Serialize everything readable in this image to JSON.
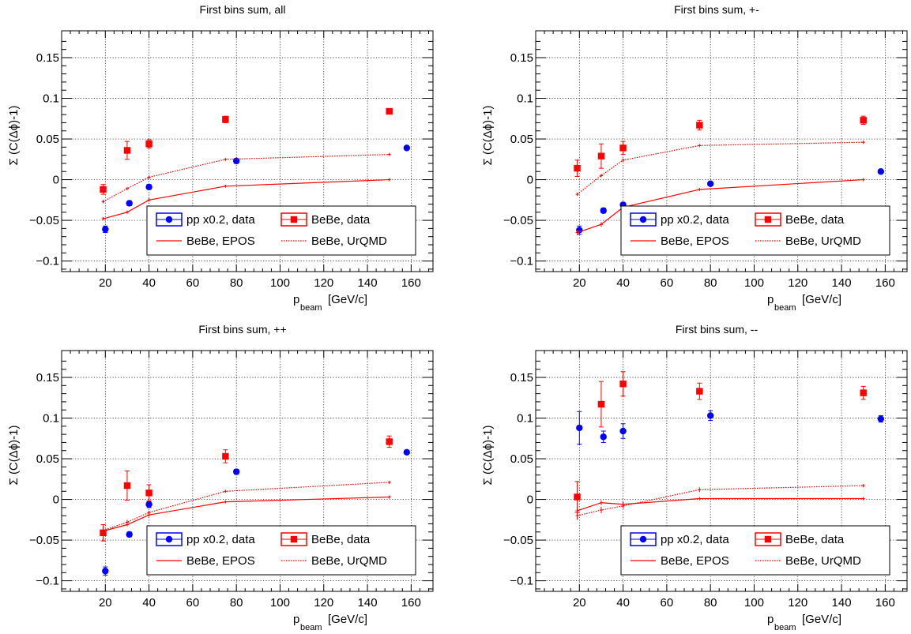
{
  "chart_data": [
    {
      "type": "scatter",
      "title": "First bins sum, all",
      "xlabel_main": "p",
      "xlabel_sub": "beam",
      "xlabel_unit": "[GeV/c]",
      "ylabel": "Σ (C(Δϕ)-1)",
      "xlim": [
        0,
        170
      ],
      "ylim": [
        -0.113,
        0.183
      ],
      "xticks": [
        "20",
        "40",
        "60",
        "80",
        "100",
        "120",
        "140",
        "160"
      ],
      "yticks": [
        "−0.1",
        "−0.05",
        "0",
        "0.05",
        "0.1",
        "0.15"
      ],
      "grid": true,
      "legend_placement": "bottom-right",
      "series": [
        {
          "name": "pp x0.2, data",
          "kind": "marker-circle",
          "color": "#0000ff",
          "x": [
            20,
            31,
            40,
            80,
            158
          ],
          "y": [
            -0.061,
            -0.029,
            -0.009,
            0.023,
            0.039
          ],
          "err": [
            0.004,
            0.003,
            0.003,
            0.003,
            0.002
          ]
        },
        {
          "name": "BeBe, data",
          "kind": "marker-square",
          "color": "#ff0000",
          "x": [
            19,
            30,
            40,
            75,
            150
          ],
          "y": [
            -0.012,
            0.036,
            0.044,
            0.074,
            0.084
          ],
          "err": [
            0.006,
            0.011,
            0.005,
            0.004,
            0.003
          ]
        },
        {
          "name": "BeBe, EPOS",
          "kind": "line-solid",
          "color": "#ff0000",
          "x": [
            19,
            30,
            40,
            75,
            150
          ],
          "y": [
            -0.048,
            -0.04,
            -0.025,
            -0.008,
            0.0
          ],
          "err": [
            0.002,
            0.002,
            0.002,
            0.001,
            0.001
          ]
        },
        {
          "name": "BeBe, UrQMD",
          "kind": "line-dotted",
          "color": "#ff0000",
          "x": [
            19,
            30,
            40,
            75,
            150
          ],
          "y": [
            -0.027,
            -0.011,
            0.003,
            0.025,
            0.031
          ],
          "err": [
            0.002,
            0.002,
            0.002,
            0.001,
            0.001
          ]
        }
      ]
    },
    {
      "type": "scatter",
      "title": "First bins sum, +-",
      "xlabel_main": "p",
      "xlabel_sub": "beam",
      "xlabel_unit": "[GeV/c]",
      "ylabel": "Σ (C(Δϕ)-1)",
      "xlim": [
        0,
        170
      ],
      "ylim": [
        -0.113,
        0.183
      ],
      "xticks": [
        "20",
        "40",
        "60",
        "80",
        "100",
        "120",
        "140",
        "160"
      ],
      "yticks": [
        "−0.1",
        "−0.05",
        "0",
        "0.05",
        "0.1",
        "0.15"
      ],
      "grid": true,
      "legend_placement": "bottom-right",
      "series": [
        {
          "name": "pp x0.2, data",
          "kind": "marker-circle",
          "color": "#0000ff",
          "x": [
            20,
            31,
            40,
            80,
            158
          ],
          "y": [
            -0.062,
            -0.038,
            -0.031,
            -0.005,
            0.01
          ],
          "err": [
            0.005,
            0.003,
            0.003,
            0.002,
            0.002
          ]
        },
        {
          "name": "BeBe, data",
          "kind": "marker-square",
          "color": "#ff0000",
          "x": [
            19,
            30,
            40,
            75,
            150
          ],
          "y": [
            0.014,
            0.029,
            0.039,
            0.067,
            0.073
          ],
          "err": [
            0.01,
            0.015,
            0.008,
            0.006,
            0.005
          ]
        },
        {
          "name": "BeBe, EPOS",
          "kind": "line-solid",
          "color": "#ff0000",
          "x": [
            19,
            30,
            40,
            75,
            150
          ],
          "y": [
            -0.065,
            -0.055,
            -0.034,
            -0.012,
            0.0
          ],
          "err": [
            0.003,
            0.003,
            0.003,
            0.002,
            0.001
          ]
        },
        {
          "name": "BeBe, UrQMD",
          "kind": "line-dotted",
          "color": "#ff0000",
          "x": [
            19,
            30,
            40,
            75,
            150
          ],
          "y": [
            -0.018,
            0.005,
            0.024,
            0.042,
            0.046
          ],
          "err": [
            0.002,
            0.002,
            0.002,
            0.002,
            0.001
          ]
        }
      ]
    },
    {
      "type": "scatter",
      "title": "First bins sum, ++",
      "xlabel_main": "p",
      "xlabel_sub": "beam",
      "xlabel_unit": "[GeV/c]",
      "ylabel": "Σ (C(Δϕ)-1)",
      "xlim": [
        0,
        170
      ],
      "ylim": [
        -0.113,
        0.183
      ],
      "xticks": [
        "20",
        "40",
        "60",
        "80",
        "100",
        "120",
        "140",
        "160"
      ],
      "yticks": [
        "−0.1",
        "−0.05",
        "0",
        "0.05",
        "0.1",
        "0.15"
      ],
      "grid": true,
      "legend_placement": "bottom-right",
      "series": [
        {
          "name": "pp x0.2, data",
          "kind": "marker-circle",
          "color": "#0000ff",
          "x": [
            20,
            31,
            40,
            80,
            158
          ],
          "y": [
            -0.088,
            -0.043,
            -0.006,
            0.034,
            0.058
          ],
          "err": [
            0.005,
            0.003,
            0.004,
            0.003,
            0.002
          ]
        },
        {
          "name": "BeBe, data",
          "kind": "marker-square",
          "color": "#ff0000",
          "x": [
            19,
            30,
            40,
            75,
            150
          ],
          "y": [
            -0.041,
            0.017,
            0.008,
            0.053,
            0.071
          ],
          "err": [
            0.01,
            0.018,
            0.01,
            0.008,
            0.007
          ]
        },
        {
          "name": "BeBe, EPOS",
          "kind": "line-solid",
          "color": "#ff0000",
          "x": [
            19,
            30,
            40,
            75,
            150
          ],
          "y": [
            -0.039,
            -0.031,
            -0.019,
            -0.003,
            0.003
          ],
          "err": [
            0.002,
            0.002,
            0.002,
            0.001,
            0.001
          ]
        },
        {
          "name": "BeBe, UrQMD",
          "kind": "line-dotted",
          "color": "#ff0000",
          "x": [
            19,
            30,
            40,
            75,
            150
          ],
          "y": [
            -0.038,
            -0.028,
            -0.016,
            0.01,
            0.021
          ],
          "err": [
            0.003,
            0.003,
            0.002,
            0.002,
            0.002
          ]
        }
      ]
    },
    {
      "type": "scatter",
      "title": "First bins sum, --",
      "xlabel_main": "p",
      "xlabel_sub": "beam",
      "xlabel_unit": "[GeV/c]",
      "ylabel": "Σ (C(Δϕ)-1)",
      "xlim": [
        0,
        170
      ],
      "ylim": [
        -0.113,
        0.183
      ],
      "xticks": [
        "20",
        "40",
        "60",
        "80",
        "100",
        "120",
        "140",
        "160"
      ],
      "yticks": [
        "−0.1",
        "−0.05",
        "0",
        "0.05",
        "0.1",
        "0.15"
      ],
      "grid": true,
      "legend_placement": "bottom-right",
      "series": [
        {
          "name": "pp x0.2, data",
          "kind": "marker-circle",
          "color": "#0000ff",
          "x": [
            20,
            31,
            40,
            80,
            158
          ],
          "y": [
            0.088,
            0.077,
            0.084,
            0.103,
            0.099
          ],
          "err": [
            0.02,
            0.007,
            0.009,
            0.006,
            0.004
          ]
        },
        {
          "name": "BeBe, data",
          "kind": "marker-square",
          "color": "#ff0000",
          "x": [
            19,
            30,
            40,
            75,
            150
          ],
          "y": [
            0.003,
            0.117,
            0.142,
            0.133,
            0.131
          ],
          "err": [
            0.019,
            0.028,
            0.015,
            0.01,
            0.008
          ]
        },
        {
          "name": "BeBe, EPOS",
          "kind": "line-solid",
          "color": "#ff0000",
          "x": [
            19,
            30,
            40,
            75,
            150
          ],
          "y": [
            -0.014,
            -0.004,
            -0.006,
            0.001,
            0.001
          ],
          "err": [
            0.004,
            0.003,
            0.003,
            0.002,
            0.001
          ]
        },
        {
          "name": "BeBe, UrQMD",
          "kind": "line-dotted",
          "color": "#ff0000",
          "x": [
            19,
            30,
            40,
            75,
            150
          ],
          "y": [
            -0.02,
            -0.013,
            -0.008,
            0.012,
            0.017
          ],
          "err": [
            0.005,
            0.004,
            0.003,
            0.003,
            0.002
          ]
        }
      ]
    }
  ]
}
